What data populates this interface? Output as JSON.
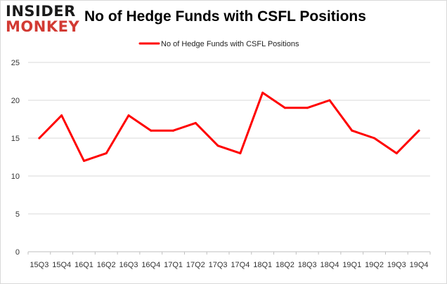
{
  "logo": {
    "line1": "INSIDER",
    "line2": "MONKEY"
  },
  "chart_data": {
    "type": "line",
    "title": "No of Hedge Funds with CSFL Positions",
    "categories": [
      "15Q3",
      "15Q4",
      "16Q1",
      "16Q2",
      "16Q3",
      "16Q4",
      "17Q1",
      "17Q2",
      "17Q3",
      "17Q4",
      "18Q1",
      "18Q2",
      "18Q3",
      "18Q4",
      "19Q1",
      "19Q2",
      "19Q3",
      "19Q4"
    ],
    "series": [
      {
        "name": "No of Hedge Funds with CSFL Positions",
        "values": [
          15,
          18,
          12,
          13,
          18,
          16,
          16,
          17,
          14,
          13,
          21,
          19,
          19,
          20,
          16,
          15,
          13,
          16
        ],
        "color": "#ff0000"
      }
    ],
    "yticks": [
      0,
      5,
      10,
      15,
      20,
      25
    ],
    "ylim": [
      0,
      25
    ],
    "grid": true,
    "legend": "top-center",
    "xlabel": "",
    "ylabel": ""
  }
}
